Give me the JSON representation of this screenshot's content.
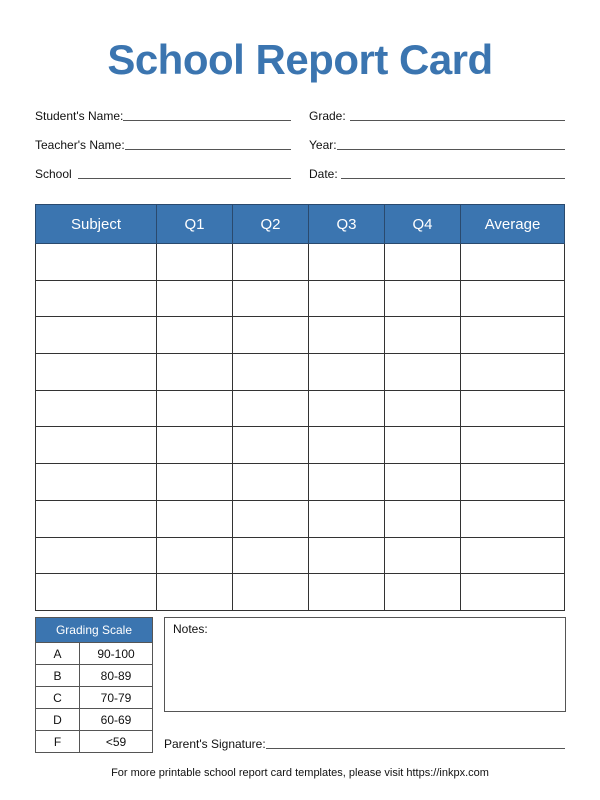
{
  "title": "School Report Card",
  "fields": {
    "student_name": "Student's Name:",
    "grade": "Grade:",
    "teacher_name": "Teacher's Name:",
    "year": "Year:",
    "school": "School",
    "date": "Date:"
  },
  "grades_table": {
    "headers": [
      "Subject",
      "Q1",
      "Q2",
      "Q3",
      "Q4",
      "Average"
    ],
    "rows": [
      [
        "",
        "",
        "",
        "",
        "",
        ""
      ],
      [
        "",
        "",
        "",
        "",
        "",
        ""
      ],
      [
        "",
        "",
        "",
        "",
        "",
        ""
      ],
      [
        "",
        "",
        "",
        "",
        "",
        ""
      ],
      [
        "",
        "",
        "",
        "",
        "",
        ""
      ],
      [
        "",
        "",
        "",
        "",
        "",
        ""
      ],
      [
        "",
        "",
        "",
        "",
        "",
        ""
      ],
      [
        "",
        "",
        "",
        "",
        "",
        ""
      ],
      [
        "",
        "",
        "",
        "",
        "",
        ""
      ],
      [
        "",
        "",
        "",
        "",
        "",
        ""
      ]
    ]
  },
  "grading_scale": {
    "title": "Grading Scale",
    "rows": [
      {
        "grade": "A",
        "range": "90-100"
      },
      {
        "grade": "B",
        "range": "80-89"
      },
      {
        "grade": "C",
        "range": "70-79"
      },
      {
        "grade": "D",
        "range": "60-69"
      },
      {
        "grade": "F",
        "range": "<59"
      }
    ]
  },
  "notes_label": "Notes:",
  "signature_label": "Parent's Signature:",
  "footer": "For more printable school report card templates, please visit https://inkpx.com",
  "colors": {
    "accent": "#3b75b0"
  }
}
